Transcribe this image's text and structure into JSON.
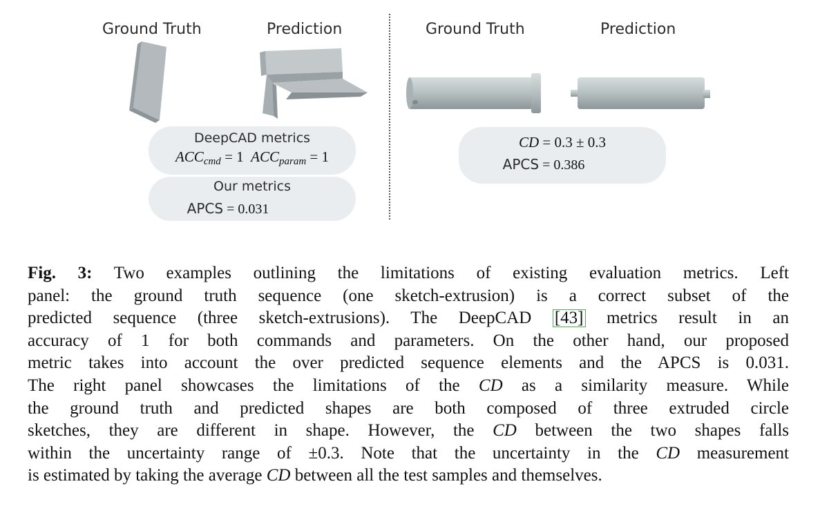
{
  "left_panel": {
    "ground_truth_label": "Ground Truth",
    "prediction_label": "Prediction",
    "deepcad_title": "DeepCAD metrics",
    "acc_cmd_lhs": "ACC",
    "acc_cmd_sub": "cmd",
    "acc_cmd_rhs": "= 1",
    "acc_param_lhs": "ACC",
    "acc_param_sub": "param",
    "acc_param_rhs": "= 1",
    "our_title": "Our metrics",
    "apcs_label": "APCS",
    "apcs_value": "= 0.031"
  },
  "right_panel": {
    "ground_truth_label": "Ground Truth",
    "prediction_label": "Prediction",
    "cd_label": "CD",
    "cd_value": "= 0.3 ± 0.3",
    "apcs_label": "APCS",
    "apcs_value": "= 0.386"
  },
  "caption": {
    "fig_label": "Fig. 3:",
    "l1": " Two examples outlining the limitations of existing evaluation metrics. Left",
    "l2": "panel: the ground truth sequence (one sketch-extrusion) is a correct subset of the",
    "l3a": "predicted sequence (three sketch-extrusions). The DeepCAD ",
    "cite": "[43]",
    "l3b": " metrics result in an",
    "l4": "accuracy of 1 for both commands and parameters. On the other hand, our proposed",
    "l5": "metric takes into account the over predicted sequence elements and the APCS is 0.031.",
    "l6a": "The right panel showcases the limitations of the ",
    "l6cd": "CD",
    "l6b": " as a similarity measure. While",
    "l7": "the ground truth and predicted shapes are both composed of three extruded circle",
    "l8a": "sketches, they are different in shape. However, the ",
    "l8cd": "CD",
    "l8b": " between the two shapes falls",
    "l9": "within the uncertainty range of ±0.3. Note that the uncertainty in the ",
    "l9cd": "CD",
    "l9b": " measurement",
    "l10a": "is estimated by taking the average ",
    "l10cd": "CD",
    "l10b": " between all the test samples and themselves."
  }
}
